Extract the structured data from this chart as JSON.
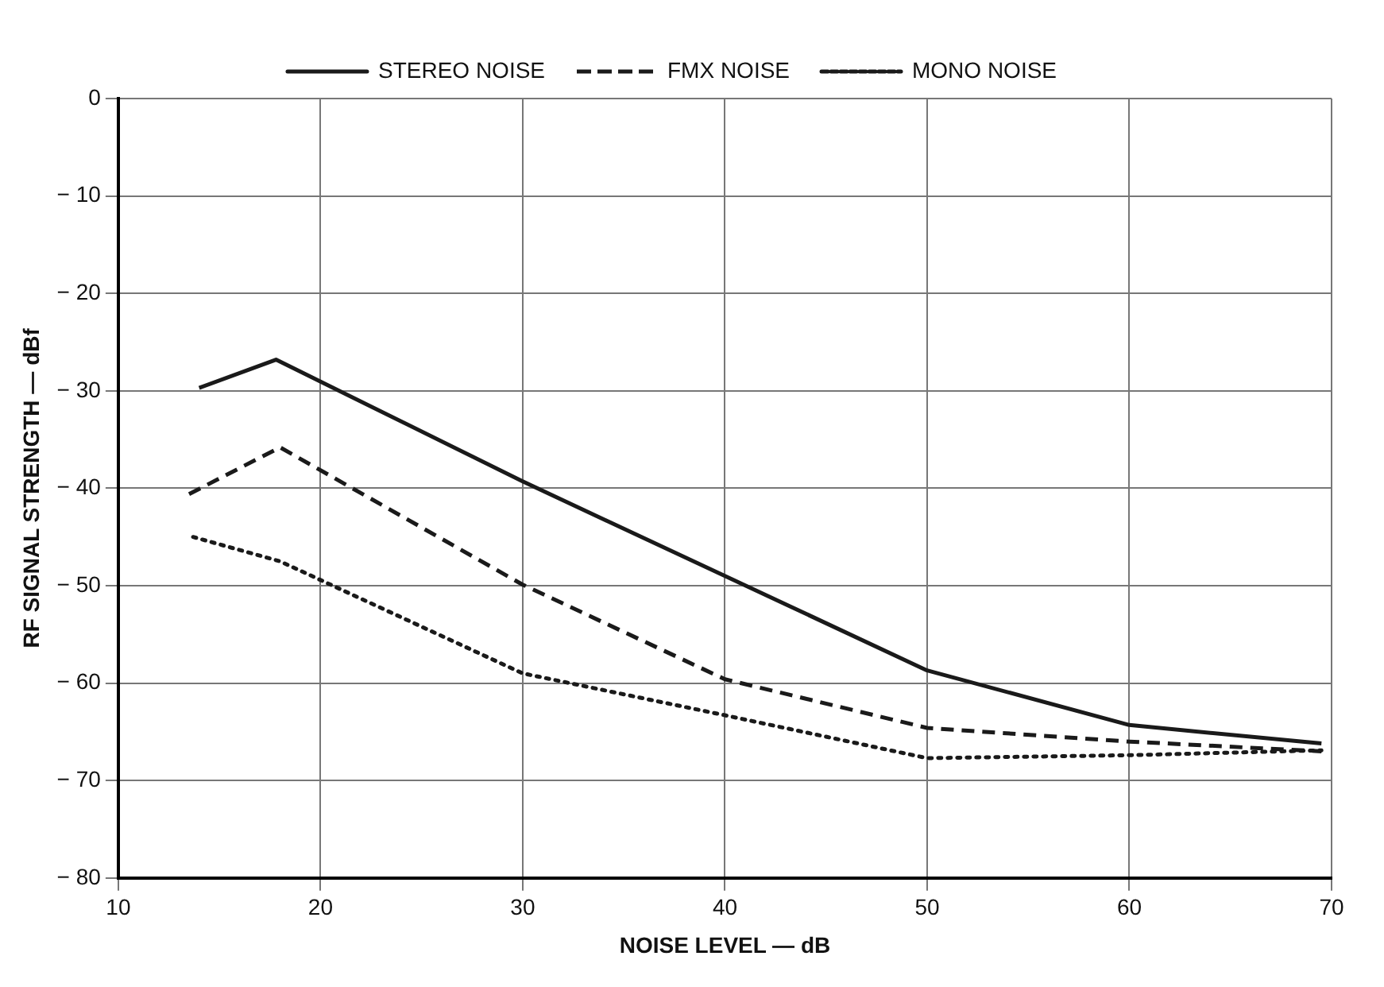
{
  "chart_data": {
    "type": "line",
    "xlabel": "NOISE LEVEL — dB",
    "ylabel": "RF SIGNAL STRENGTH — dBf",
    "xlim": [
      10,
      70
    ],
    "xticks": [
      10,
      20,
      30,
      40,
      50,
      60,
      70
    ],
    "ylim": [
      -80,
      0
    ],
    "yticks": [
      -80,
      -70,
      -60,
      -50,
      -40,
      -30,
      -20,
      -10,
      0
    ],
    "grid": true,
    "legend": "top",
    "marker": "none",
    "series": [
      {
        "name": "STEREO NOISE",
        "color": "#1a1a1a",
        "line_style": "solid",
        "x": [
          14,
          17.8,
          30,
          40,
          50,
          60,
          69.5
        ],
        "values": [
          -29.7,
          -26.8,
          -39.3,
          -49,
          -58.7,
          -64.3,
          -66.2
        ]
      },
      {
        "name": "FMX NOISE",
        "color": "#1a1a1a",
        "line_style": "dashed",
        "x": [
          13.5,
          18,
          30,
          40,
          50,
          60,
          69.5
        ],
        "values": [
          -40.6,
          -35.8,
          -49.9,
          -59.6,
          -64.6,
          -66,
          -67
        ]
      },
      {
        "name": "MONO NOISE",
        "color": "#1a1a1a",
        "line_style": "dotted",
        "x": [
          13.7,
          18,
          30,
          40,
          50,
          60,
          69.5
        ],
        "values": [
          -45,
          -47.5,
          -59,
          -63.3,
          -67.7,
          -67.4,
          -66.9
        ]
      }
    ]
  }
}
